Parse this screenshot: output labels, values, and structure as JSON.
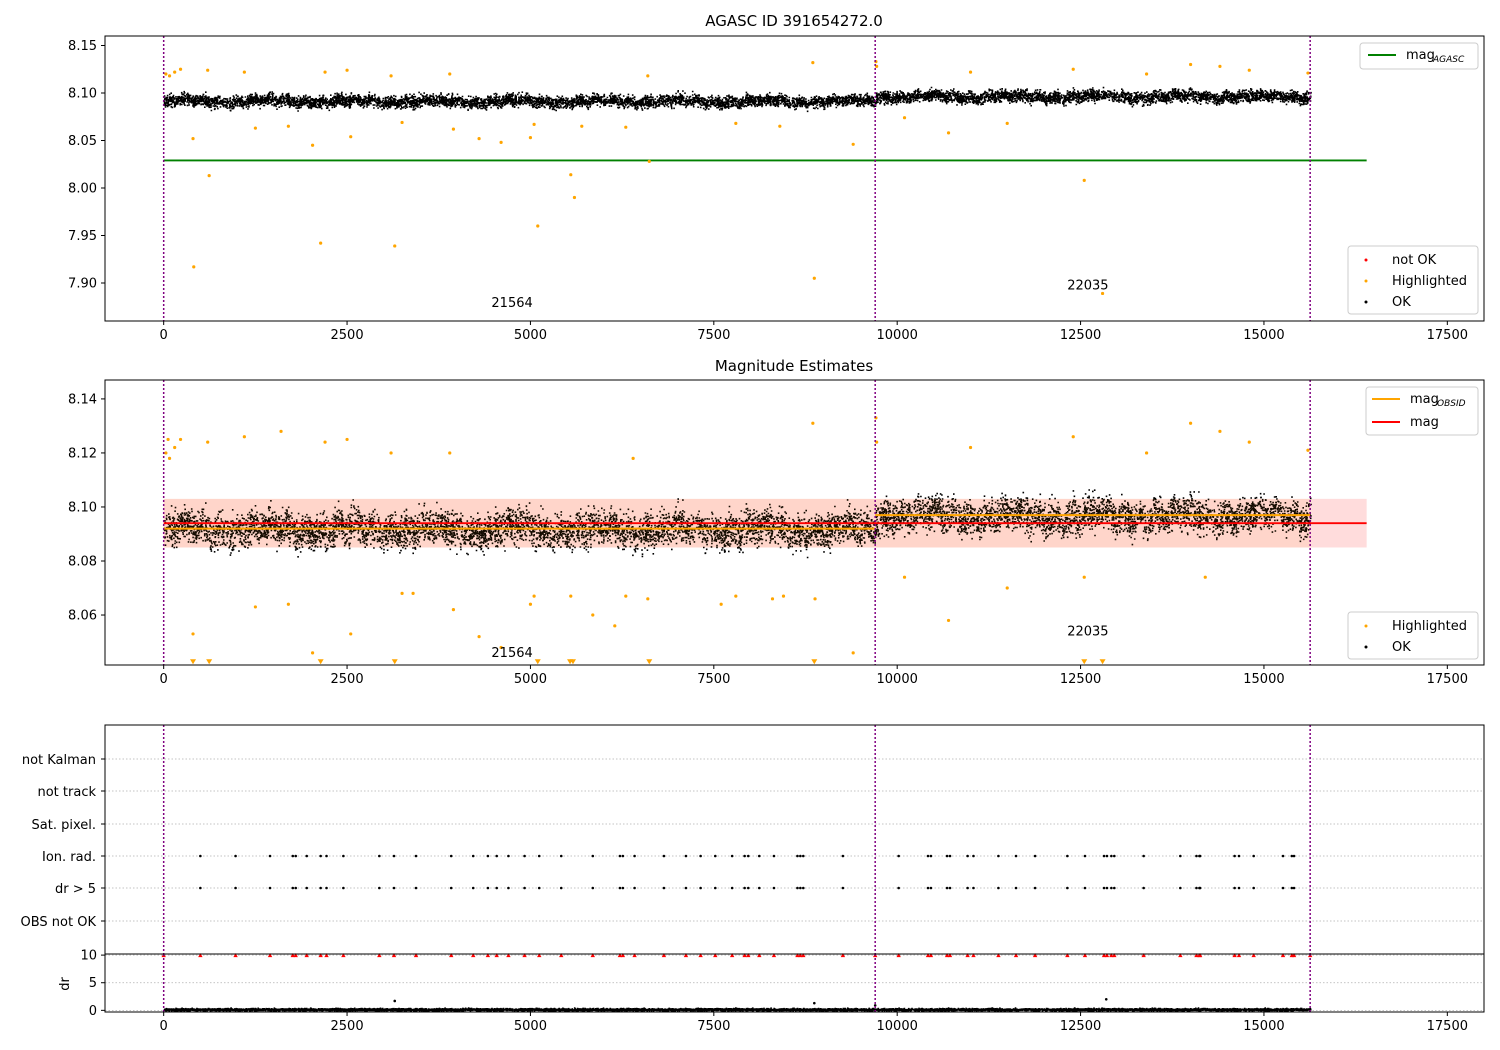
{
  "colors": {
    "ok": "#000000",
    "highlighted": "#ffa500",
    "not_ok": "#ff0000",
    "agasc_line": "#008000",
    "obsid_line": "#ffa500",
    "mag_line": "#ff0000",
    "mag_band": "#ffc0c0",
    "obs_boundary": "#800080",
    "grid": "#b0b0b0"
  },
  "chart_data": [
    {
      "type": "scatter",
      "title": "AGASC ID 391654272.0",
      "xlim": [
        -800,
        18000
      ],
      "ylim": [
        7.86,
        8.16
      ],
      "xticks": [
        "0",
        "2500",
        "5000",
        "7500",
        "10000",
        "12500",
        "15000",
        "17500"
      ],
      "yticks": [
        "7.90",
        "7.95",
        "8.00",
        "8.05",
        "8.10",
        "8.15"
      ],
      "xtick_values": [
        0,
        2500,
        5000,
        7500,
        10000,
        12500,
        15000,
        17500
      ],
      "ytick_values": [
        7.9,
        7.95,
        8.0,
        8.05,
        8.1,
        8.15
      ],
      "ok_band": [
        {
          "x": [
            0,
            9700
          ],
          "center": 8.092,
          "spread": 0.012
        },
        {
          "x": [
            9700,
            15630
          ],
          "center": 8.097,
          "spread": 0.012
        }
      ],
      "series": [
        {
          "name": "mag_AGASC",
          "kind": "hline",
          "y": 8.029,
          "x": [
            0,
            16400
          ]
        },
        {
          "name": "not OK",
          "kind": "points",
          "points": []
        },
        {
          "name": "Highlighted",
          "kind": "points",
          "points": [
            [
              30,
              8.12
            ],
            [
              80,
              8.118
            ],
            [
              150,
              8.122
            ],
            [
              230,
              8.125
            ],
            [
              400,
              8.052
            ],
            [
              410,
              7.917
            ],
            [
              600,
              8.124
            ],
            [
              620,
              8.013
            ],
            [
              1100,
              8.122
            ],
            [
              1250,
              8.063
            ],
            [
              1700,
              8.065
            ],
            [
              2030,
              8.045
            ],
            [
              2140,
              7.942
            ],
            [
              2200,
              8.122
            ],
            [
              2500,
              8.124
            ],
            [
              2550,
              8.054
            ],
            [
              3100,
              8.118
            ],
            [
              3150,
              7.939
            ],
            [
              3250,
              8.069
            ],
            [
              3900,
              8.12
            ],
            [
              3950,
              8.062
            ],
            [
              4300,
              8.052
            ],
            [
              4600,
              8.048
            ],
            [
              5000,
              8.053
            ],
            [
              5050,
              8.067
            ],
            [
              5100,
              7.96
            ],
            [
              5550,
              8.014
            ],
            [
              5600,
              7.99
            ],
            [
              5700,
              8.065
            ],
            [
              6300,
              8.064
            ],
            [
              6600,
              8.118
            ],
            [
              6620,
              8.028
            ],
            [
              7800,
              8.068
            ],
            [
              8400,
              8.065
            ],
            [
              8850,
              8.132
            ],
            [
              8870,
              7.905
            ],
            [
              9400,
              8.046
            ],
            [
              9710,
              8.133
            ],
            [
              9720,
              8.128
            ],
            [
              10100,
              8.074
            ],
            [
              10700,
              8.058
            ],
            [
              11000,
              8.122
            ],
            [
              11500,
              8.068
            ],
            [
              12400,
              8.125
            ],
            [
              12550,
              8.008
            ],
            [
              12800,
              7.889
            ],
            [
              13400,
              8.12
            ],
            [
              14000,
              8.13
            ],
            [
              14400,
              8.128
            ],
            [
              14800,
              8.124
            ],
            [
              15600,
              8.121
            ]
          ]
        }
      ],
      "annotations": [
        {
          "text": "21564",
          "x": 4750,
          "y": 7.875
        },
        {
          "text": "22035",
          "x": 12600,
          "y": 7.893
        }
      ],
      "vlines": [
        0,
        9700,
        15630
      ],
      "legends": [
        {
          "placement": "top-right",
          "entries": [
            {
              "label": "mag",
              "sub": "AGASC",
              "kind": "line",
              "color": "#008000"
            }
          ]
        },
        {
          "placement": "bottom-right",
          "entries": [
            {
              "label": "not OK",
              "kind": "dot",
              "color": "#ff0000"
            },
            {
              "label": "Highlighted",
              "kind": "dot",
              "color": "#ffa500"
            },
            {
              "label": "OK",
              "kind": "dot",
              "color": "#000000"
            }
          ]
        }
      ]
    },
    {
      "type": "scatter",
      "title": "Magnitude Estimates",
      "xlim": [
        -800,
        18000
      ],
      "ylim": [
        8.0415,
        8.147
      ],
      "xticks": [
        "0",
        "2500",
        "5000",
        "7500",
        "10000",
        "12500",
        "15000",
        "17500"
      ],
      "yticks": [
        "8.06",
        "8.08",
        "8.10",
        "8.12",
        "8.14"
      ],
      "xtick_values": [
        0,
        2500,
        5000,
        7500,
        10000,
        12500,
        15000,
        17500
      ],
      "ytick_values": [
        8.06,
        8.08,
        8.1,
        8.12,
        8.14
      ],
      "band": {
        "low": 8.085,
        "high": 8.103,
        "x": [
          0,
          16400
        ]
      },
      "ok_band": [
        {
          "x": [
            0,
            9700
          ],
          "center": 8.092,
          "spread": 0.012
        },
        {
          "x": [
            9700,
            15630
          ],
          "center": 8.097,
          "spread": 0.012
        }
      ],
      "series": [
        {
          "name": "mag_OBSID",
          "kind": "segments",
          "segments": [
            {
              "x": [
                0,
                9700
              ],
              "y": 8.092
            },
            {
              "x": [
                9700,
                15630
              ],
              "y": 8.097
            }
          ]
        },
        {
          "name": "mag",
          "kind": "hline",
          "y": 8.094,
          "x": [
            0,
            16400
          ]
        },
        {
          "name": "Highlighted",
          "kind": "points",
          "points": [
            [
              30,
              8.12
            ],
            [
              60,
              8.125
            ],
            [
              80,
              8.118
            ],
            [
              150,
              8.122
            ],
            [
              230,
              8.125
            ],
            [
              400,
              8.053
            ],
            [
              600,
              8.124
            ],
            [
              1100,
              8.126
            ],
            [
              1250,
              8.063
            ],
            [
              1600,
              8.128
            ],
            [
              1700,
              8.064
            ],
            [
              2030,
              8.046
            ],
            [
              2200,
              8.124
            ],
            [
              2500,
              8.125
            ],
            [
              2550,
              8.053
            ],
            [
              3100,
              8.12
            ],
            [
              3250,
              8.068
            ],
            [
              3400,
              8.068
            ],
            [
              3900,
              8.12
            ],
            [
              3950,
              8.062
            ],
            [
              4300,
              8.052
            ],
            [
              4600,
              8.048
            ],
            [
              5000,
              8.064
            ],
            [
              5050,
              8.067
            ],
            [
              5550,
              8.067
            ],
            [
              5850,
              8.06
            ],
            [
              6150,
              8.056
            ],
            [
              6300,
              8.067
            ],
            [
              6400,
              8.118
            ],
            [
              6600,
              8.066
            ],
            [
              7600,
              8.064
            ],
            [
              7800,
              8.067
            ],
            [
              8300,
              8.066
            ],
            [
              8450,
              8.067
            ],
            [
              8850,
              8.131
            ],
            [
              8880,
              8.066
            ],
            [
              9400,
              8.046
            ],
            [
              9710,
              8.133
            ],
            [
              9720,
              8.124
            ],
            [
              10100,
              8.074
            ],
            [
              10700,
              8.058
            ],
            [
              11000,
              8.122
            ],
            [
              11500,
              8.07
            ],
            [
              12400,
              8.126
            ],
            [
              12550,
              8.074
            ],
            [
              13400,
              8.12
            ],
            [
              14000,
              8.131
            ],
            [
              14200,
              8.074
            ],
            [
              14400,
              8.128
            ],
            [
              14800,
              8.124
            ],
            [
              15600,
              8.121
            ]
          ]
        },
        {
          "name": "below-range",
          "kind": "markers",
          "x": [
            400,
            620,
            2140,
            3150,
            5100,
            5540,
            5580,
            6620,
            8870,
            12550,
            12800
          ],
          "y": 8.0425
        }
      ],
      "annotations": [
        {
          "text": "21564",
          "x": 4750,
          "y": 8.0445
        },
        {
          "text": "22035",
          "x": 12600,
          "y": 8.0525
        }
      ],
      "vlines": [
        0,
        9700,
        15630
      ],
      "legends": [
        {
          "placement": "top-right",
          "entries": [
            {
              "label": "mag",
              "sub": "OBSID",
              "kind": "line",
              "color": "#ffa500"
            },
            {
              "label": "mag",
              "kind": "line",
              "color": "#ff0000"
            }
          ]
        },
        {
          "placement": "bottom-right",
          "entries": [
            {
              "label": "Highlighted",
              "kind": "dot",
              "color": "#ffa500"
            },
            {
              "label": "OK",
              "kind": "dot",
              "color": "#000000"
            }
          ]
        }
      ]
    },
    {
      "type": "scatter",
      "xlim": [
        -800,
        18000
      ],
      "categories": [
        "not Kalman",
        "not track",
        "Sat. pixel.",
        "Ion. rad.",
        "dr > 5",
        "OBS not OK"
      ],
      "flag_x": [
        500,
        980,
        1450,
        1760,
        1800,
        1950,
        2140,
        2220,
        2450,
        2940,
        3140,
        3440,
        3920,
        4220,
        4420,
        4540,
        4700,
        4920,
        5120,
        5420,
        5850,
        6220,
        6260,
        6420,
        6820,
        7120,
        7320,
        7520,
        7750,
        7920,
        7970,
        8120,
        8320,
        8640,
        8680,
        8720,
        9260,
        10020,
        10420,
        10460,
        10680,
        10720,
        10960,
        11040,
        11380,
        11620,
        11880,
        12320,
        12560,
        12820,
        12860,
        12920,
        12960,
        13360,
        13860,
        14080,
        14120,
        14130,
        14600,
        14660,
        14860,
        15260,
        15380,
        15410
      ],
      "flag_rows": [
        "Ion. rad.",
        "dr > 5"
      ],
      "vlines": [
        0,
        9700,
        15630
      ]
    },
    {
      "type": "scatter",
      "xlim": [
        -800,
        18000
      ],
      "ylabel": "dr",
      "ylim": [
        -0.3,
        10.2
      ],
      "yticks": [
        "0",
        "5",
        "10"
      ],
      "ytick_values": [
        0,
        5,
        10
      ],
      "xticks": [
        "0",
        "2500",
        "5000",
        "7500",
        "10000",
        "12500",
        "15000",
        "17500"
      ],
      "xtick_values": [
        0,
        2500,
        5000,
        7500,
        10000,
        12500,
        15000,
        17500
      ],
      "ok_band": [
        {
          "x": [
            0,
            15630
          ],
          "center": 0.25,
          "spread": 0.3
        }
      ],
      "capped_y": 10,
      "extra_points": [
        [
          3150,
          1.7
        ],
        [
          8870,
          1.3
        ],
        [
          12850,
          2.0
        ],
        [
          9700,
          0.9
        ]
      ],
      "vlines": [
        0,
        9700,
        15630
      ]
    }
  ]
}
